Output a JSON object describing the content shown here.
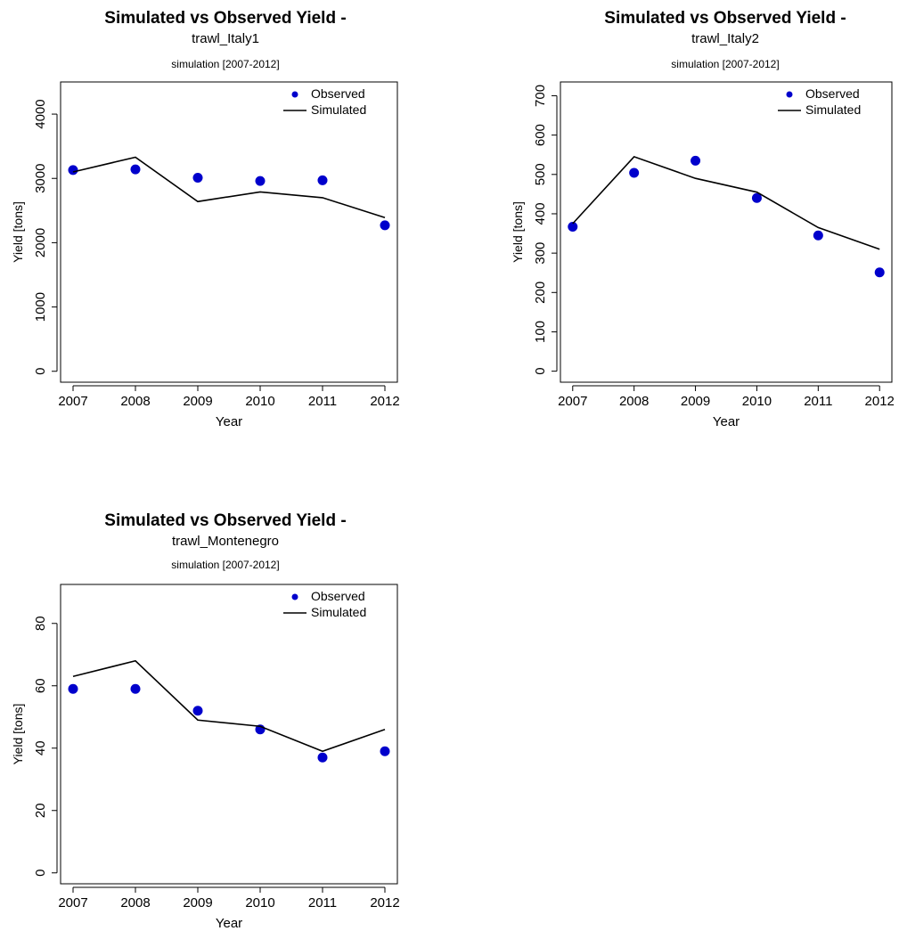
{
  "chart_data": [
    {
      "type": "line",
      "title": "Simulated vs Observed Yield -",
      "subtitle": "trawl_Italy1",
      "caption": "simulation [2007-2012]",
      "xlabel": "Year",
      "ylabel": "Yield [tons]",
      "x": [
        2007,
        2008,
        2009,
        2010,
        2011,
        2012
      ],
      "xticks": [
        "2007",
        "2008",
        "2009",
        "2010",
        "2011",
        "2012"
      ],
      "yticks": [
        0,
        1000,
        2000,
        3000,
        4000
      ],
      "ylim": [
        -170,
        4500
      ],
      "xlim": [
        2006.8,
        2012.2
      ],
      "legend": {
        "position": "top-right",
        "entries": [
          "Observed",
          "Simulated"
        ]
      },
      "series": [
        {
          "name": "Observed",
          "kind": "points",
          "color": "#0000cc",
          "values": [
            3130,
            3140,
            3010,
            2960,
            2970,
            2270
          ]
        },
        {
          "name": "Simulated",
          "kind": "line",
          "color": "#000000",
          "values": [
            3100,
            3330,
            2640,
            2790,
            2700,
            2390
          ]
        }
      ]
    },
    {
      "type": "line",
      "title": "Simulated vs Observed Yield -",
      "subtitle": "trawl_Italy2",
      "caption": "simulation [2007-2012]",
      "xlabel": "Year",
      "ylabel": "Yield [tons]",
      "x": [
        2007,
        2008,
        2009,
        2010,
        2011,
        2012
      ],
      "xticks": [
        "2007",
        "2008",
        "2009",
        "2010",
        "2011",
        "2012"
      ],
      "yticks": [
        0,
        100,
        200,
        300,
        400,
        500,
        600,
        700
      ],
      "ylim": [
        -28,
        735
      ],
      "xlim": [
        2006.8,
        2012.2
      ],
      "legend": {
        "position": "top-right",
        "entries": [
          "Observed",
          "Simulated"
        ]
      },
      "series": [
        {
          "name": "Observed",
          "kind": "points",
          "color": "#0000cc",
          "values": [
            367,
            504,
            535,
            440,
            345,
            251
          ]
        },
        {
          "name": "Simulated",
          "kind": "line",
          "color": "#000000",
          "values": [
            375,
            545,
            490,
            455,
            365,
            310
          ]
        }
      ]
    },
    {
      "type": "line",
      "title": "Simulated vs Observed Yield -",
      "subtitle": "trawl_Montenegro",
      "caption": "simulation [2007-2012]",
      "xlabel": "Year",
      "ylabel": "Yield [tons]",
      "x": [
        2007,
        2008,
        2009,
        2010,
        2011,
        2012
      ],
      "xticks": [
        "2007",
        "2008",
        "2009",
        "2010",
        "2011",
        "2012"
      ],
      "yticks": [
        0,
        20,
        40,
        60,
        80
      ],
      "ylim": [
        -3.5,
        92.5
      ],
      "xlim": [
        2006.8,
        2012.2
      ],
      "legend": {
        "position": "top-right",
        "entries": [
          "Observed",
          "Simulated"
        ]
      },
      "series": [
        {
          "name": "Observed",
          "kind": "points",
          "color": "#0000cc",
          "values": [
            59,
            59,
            52,
            46,
            37,
            39
          ]
        },
        {
          "name": "Simulated",
          "kind": "line",
          "color": "#000000",
          "values": [
            63,
            68,
            49,
            47,
            39,
            46
          ]
        }
      ]
    }
  ]
}
